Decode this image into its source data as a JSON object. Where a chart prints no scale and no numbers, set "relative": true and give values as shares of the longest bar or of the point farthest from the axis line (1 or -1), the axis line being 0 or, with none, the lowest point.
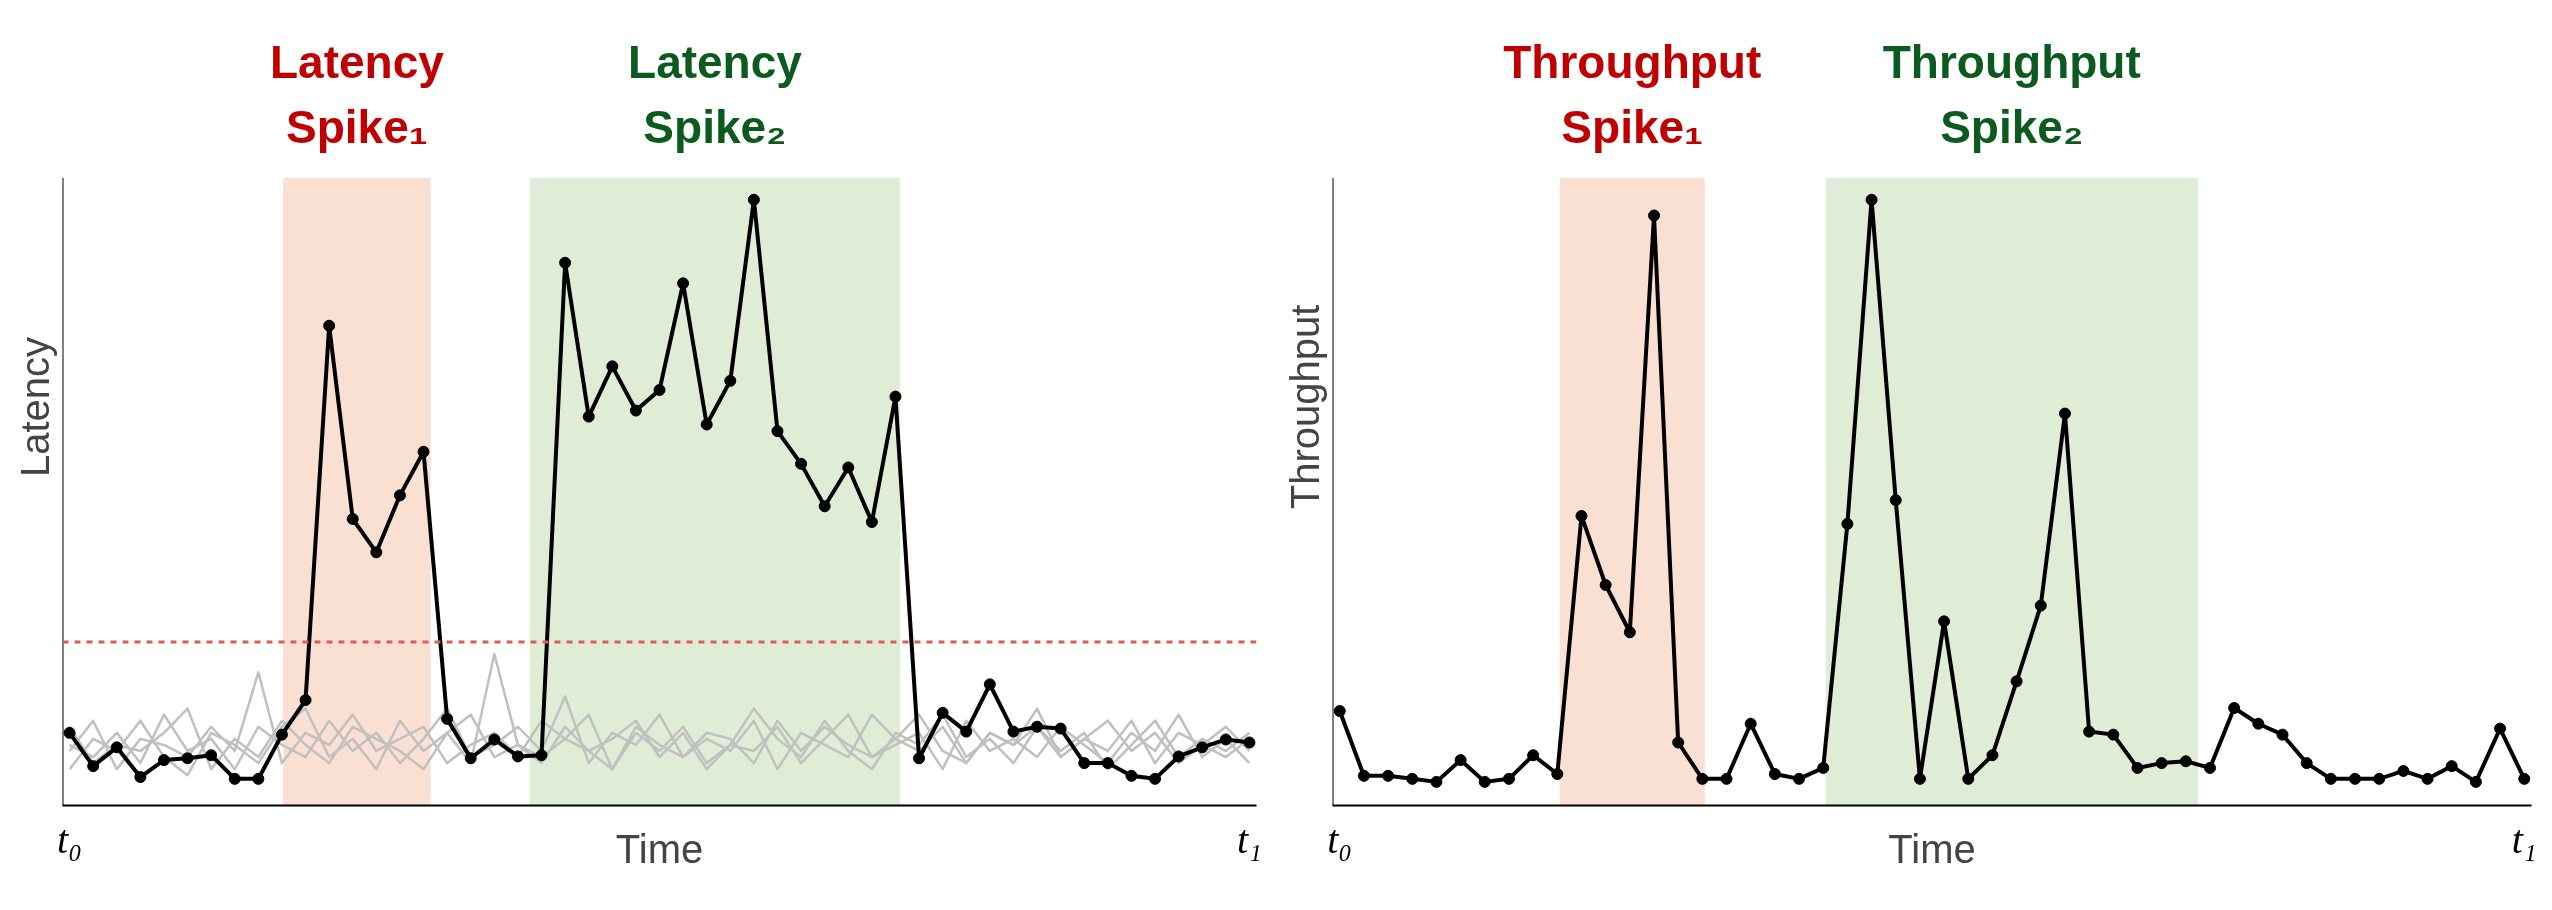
{
  "chart_data": [
    {
      "type": "line",
      "relative": true,
      "xlabel": "Time",
      "ylabel": "Latency",
      "tick_labels": "x",
      "grid": false,
      "marker": "circle",
      "line_style": "solid",
      "categories": [
        "t₀",
        null,
        null,
        null,
        null,
        null,
        null,
        null,
        null,
        null,
        null,
        null,
        null,
        null,
        null,
        null,
        null,
        null,
        null,
        null,
        null,
        null,
        null,
        null,
        null,
        null,
        null,
        null,
        null,
        null,
        null,
        null,
        null,
        null,
        null,
        null,
        null,
        null,
        null,
        null,
        null,
        null,
        null,
        null,
        null,
        null,
        null,
        null,
        null,
        null,
        "t₁"
      ],
      "annotations": [
        "Latency Spike₁",
        "Latency Spike₂"
      ],
      "ref_lines": [
        {
          "axis": "y",
          "value": 0.27,
          "color": "#e05a5a",
          "line_style": "dashed"
        }
      ],
      "series": [
        {
          "color": "#c0c0c0",
          "marker": "none",
          "values": [
            0.1,
            0.08,
            0.12,
            0.07,
            0.15,
            0.09,
            0.11,
            0.06,
            0.13,
            0.1,
            0.08,
            0.14,
            0.09,
            0.12,
            0.07,
            0.11,
            0.16,
            0.08,
            0.1,
            0.13,
            0.09,
            0.18,
            0.07,
            0.12,
            0.1,
            0.15,
            0.08,
            0.11,
            0.09,
            0.14,
            0.06,
            0.12,
            0.1,
            0.08,
            0.15,
            0.11,
            0.09,
            0.13,
            0.07,
            0.12,
            0.1,
            0.16,
            0.08,
            0.11,
            0.14,
            0.09,
            0.12,
            0.07,
            0.1,
            0.13,
            0.09
          ]
        },
        {
          "color": "#c0c0c0",
          "marker": "none",
          "values": [
            0.06,
            0.11,
            0.09,
            0.14,
            0.08,
            0.05,
            0.12,
            0.1,
            0.07,
            0.13,
            0.16,
            0.08,
            0.11,
            0.06,
            0.14,
            0.09,
            0.12,
            0.07,
            0.25,
            0.1,
            0.08,
            0.11,
            0.15,
            0.06,
            0.12,
            0.09,
            0.13,
            0.07,
            0.1,
            0.16,
            0.11,
            0.08,
            0.14,
            0.09,
            0.06,
            0.12,
            0.1,
            0.15,
            0.08,
            0.11,
            0.07,
            0.13,
            0.09,
            0.12,
            0.06,
            0.1,
            0.14,
            0.08,
            0.11,
            0.09,
            0.12
          ]
        },
        {
          "color": "#c0c0c0",
          "marker": "none",
          "values": [
            0.13,
            0.07,
            0.1,
            0.09,
            0.12,
            0.16,
            0.06,
            0.11,
            0.08,
            0.14,
            0.1,
            0.07,
            0.13,
            0.11,
            0.09,
            0.06,
            0.12,
            0.15,
            0.08,
            0.1,
            0.07,
            0.13,
            0.09,
            0.11,
            0.14,
            0.08,
            0.12,
            0.06,
            0.1,
            0.09,
            0.13,
            0.07,
            0.11,
            0.15,
            0.08,
            0.1,
            0.12,
            0.06,
            0.14,
            0.09,
            0.11,
            0.08,
            0.13,
            0.1,
            0.07,
            0.12,
            0.09,
            0.15,
            0.08,
            0.11,
            0.07
          ]
        },
        {
          "color": "#c0c0c0",
          "marker": "none",
          "values": [
            0.09,
            0.14,
            0.06,
            0.11,
            0.1,
            0.08,
            0.13,
            0.09,
            0.22,
            0.07,
            0.12,
            0.1,
            0.15,
            0.09,
            0.11,
            0.13,
            0.07,
            0.1,
            0.12,
            0.08,
            0.14,
            0.11,
            0.09,
            0.06,
            0.13,
            0.1,
            0.08,
            0.12,
            0.11,
            0.07,
            0.14,
            0.09,
            0.13,
            0.1,
            0.08,
            0.11,
            0.15,
            0.09,
            0.07,
            0.12,
            0.1,
            0.13,
            0.08,
            0.11,
            0.09,
            0.14,
            0.07,
            0.12,
            0.1,
            0.08,
            0.11
          ]
        },
        {
          "color": "#000000",
          "values": [
            0.12,
            0.065,
            0.096,
            0.047,
            0.075,
            0.078,
            0.083,
            0.044,
            0.044,
            0.117,
            0.174,
            0.792,
            0.473,
            0.418,
            0.512,
            0.584,
            0.143,
            0.078,
            0.109,
            0.081,
            0.083,
            0.896,
            0.642,
            0.725,
            0.652,
            0.686,
            0.862,
            0.629,
            0.701,
            1,
            0.618,
            0.564,
            0.494,
            0.558,
            0.468,
            0.675,
            0.078,
            0.153,
            0.122,
            0.2,
            0.122,
            0.13,
            0.127,
            0.07,
            0.07,
            0.049,
            0.044,
            0.081,
            0.096,
            0.109,
            0.104
          ]
        }
      ]
    },
    {
      "type": "line",
      "relative": true,
      "xlabel": "Time",
      "ylabel": "Throughput",
      "tick_labels": "x",
      "grid": false,
      "marker": "circle",
      "line_style": "solid",
      "categories": [
        "t₀",
        null,
        null,
        null,
        null,
        null,
        null,
        null,
        null,
        null,
        null,
        null,
        null,
        null,
        null,
        null,
        null,
        null,
        null,
        null,
        null,
        null,
        null,
        null,
        null,
        null,
        null,
        null,
        null,
        null,
        null,
        null,
        null,
        null,
        null,
        null,
        null,
        null,
        null,
        null,
        null,
        null,
        null,
        null,
        null,
        null,
        null,
        null,
        null,
        "t₁"
      ],
      "annotations": [
        "Throughput Spike₁",
        "Throughput Spike₂"
      ],
      "series": [
        {
          "color": "#000000",
          "values": [
            0.156,
            0.049,
            0.049,
            0.044,
            0.039,
            0.075,
            0.039,
            0.044,
            0.083,
            0.052,
            0.478,
            0.364,
            0.286,
            0.974,
            0.104,
            0.044,
            0.044,
            0.135,
            0.052,
            0.044,
            0.062,
            0.465,
            1,
            0.504,
            0.044,
            0.304,
            0.044,
            0.083,
            0.205,
            0.33,
            0.647,
            0.122,
            0.117,
            0.062,
            0.07,
            0.073,
            0.062,
            0.161,
            0.135,
            0.117,
            0.07,
            0.044,
            0.044,
            0.044,
            0.057,
            0.044,
            0.065,
            0.039,
            0.127,
            0.044
          ]
        }
      ]
    }
  ]
}
